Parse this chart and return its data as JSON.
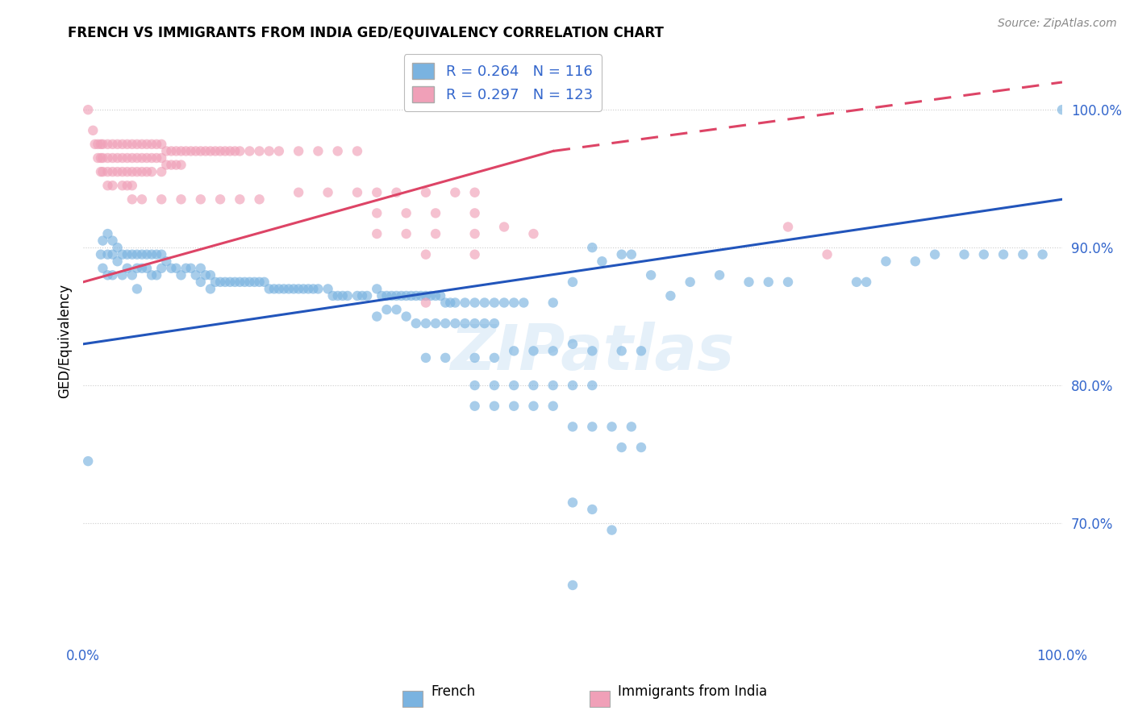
{
  "title": "FRENCH VS IMMIGRANTS FROM INDIA GED/EQUIVALENCY CORRELATION CHART",
  "source": "Source: ZipAtlas.com",
  "ylabel": "GED/Equivalency",
  "yticks": [
    "70.0%",
    "80.0%",
    "90.0%",
    "100.0%"
  ],
  "ytick_vals": [
    0.7,
    0.8,
    0.9,
    1.0
  ],
  "xlim": [
    0.0,
    1.0
  ],
  "ylim": [
    0.615,
    1.05
  ],
  "legend_french_R": "0.264",
  "legend_french_N": "116",
  "legend_india_R": "0.297",
  "legend_india_N": "123",
  "french_color": "#7ab3e0",
  "india_color": "#f0a0b8",
  "french_line_color": "#2255bb",
  "india_line_color": "#dd4466",
  "watermark": "ZIPatlas",
  "french_line": [
    0.0,
    0.83,
    1.0,
    0.935
  ],
  "india_line_solid": [
    0.0,
    0.875,
    0.48,
    0.97
  ],
  "india_line_dashed": [
    0.48,
    0.97,
    1.0,
    1.02
  ],
  "french_scatter": [
    [
      0.005,
      0.745
    ],
    [
      0.018,
      0.895
    ],
    [
      0.02,
      0.905
    ],
    [
      0.02,
      0.885
    ],
    [
      0.025,
      0.91
    ],
    [
      0.025,
      0.895
    ],
    [
      0.025,
      0.88
    ],
    [
      0.03,
      0.905
    ],
    [
      0.03,
      0.895
    ],
    [
      0.03,
      0.88
    ],
    [
      0.035,
      0.9
    ],
    [
      0.035,
      0.89
    ],
    [
      0.04,
      0.895
    ],
    [
      0.04,
      0.88
    ],
    [
      0.045,
      0.895
    ],
    [
      0.045,
      0.885
    ],
    [
      0.05,
      0.895
    ],
    [
      0.05,
      0.88
    ],
    [
      0.055,
      0.895
    ],
    [
      0.055,
      0.885
    ],
    [
      0.055,
      0.87
    ],
    [
      0.06,
      0.895
    ],
    [
      0.06,
      0.885
    ],
    [
      0.065,
      0.895
    ],
    [
      0.065,
      0.885
    ],
    [
      0.07,
      0.895
    ],
    [
      0.07,
      0.88
    ],
    [
      0.075,
      0.895
    ],
    [
      0.075,
      0.88
    ],
    [
      0.08,
      0.895
    ],
    [
      0.08,
      0.885
    ],
    [
      0.085,
      0.89
    ],
    [
      0.09,
      0.885
    ],
    [
      0.095,
      0.885
    ],
    [
      0.1,
      0.88
    ],
    [
      0.105,
      0.885
    ],
    [
      0.11,
      0.885
    ],
    [
      0.115,
      0.88
    ],
    [
      0.12,
      0.885
    ],
    [
      0.12,
      0.875
    ],
    [
      0.125,
      0.88
    ],
    [
      0.13,
      0.88
    ],
    [
      0.13,
      0.87
    ],
    [
      0.135,
      0.875
    ],
    [
      0.14,
      0.875
    ],
    [
      0.145,
      0.875
    ],
    [
      0.15,
      0.875
    ],
    [
      0.155,
      0.875
    ],
    [
      0.16,
      0.875
    ],
    [
      0.165,
      0.875
    ],
    [
      0.17,
      0.875
    ],
    [
      0.175,
      0.875
    ],
    [
      0.18,
      0.875
    ],
    [
      0.185,
      0.875
    ],
    [
      0.19,
      0.87
    ],
    [
      0.195,
      0.87
    ],
    [
      0.2,
      0.87
    ],
    [
      0.205,
      0.87
    ],
    [
      0.21,
      0.87
    ],
    [
      0.215,
      0.87
    ],
    [
      0.22,
      0.87
    ],
    [
      0.225,
      0.87
    ],
    [
      0.23,
      0.87
    ],
    [
      0.235,
      0.87
    ],
    [
      0.24,
      0.87
    ],
    [
      0.25,
      0.87
    ],
    [
      0.255,
      0.865
    ],
    [
      0.26,
      0.865
    ],
    [
      0.265,
      0.865
    ],
    [
      0.27,
      0.865
    ],
    [
      0.28,
      0.865
    ],
    [
      0.285,
      0.865
    ],
    [
      0.29,
      0.865
    ],
    [
      0.3,
      0.87
    ],
    [
      0.305,
      0.865
    ],
    [
      0.31,
      0.865
    ],
    [
      0.315,
      0.865
    ],
    [
      0.32,
      0.865
    ],
    [
      0.325,
      0.865
    ],
    [
      0.33,
      0.865
    ],
    [
      0.335,
      0.865
    ],
    [
      0.34,
      0.865
    ],
    [
      0.345,
      0.865
    ],
    [
      0.35,
      0.865
    ],
    [
      0.355,
      0.865
    ],
    [
      0.36,
      0.865
    ],
    [
      0.365,
      0.865
    ],
    [
      0.37,
      0.86
    ],
    [
      0.375,
      0.86
    ],
    [
      0.38,
      0.86
    ],
    [
      0.39,
      0.86
    ],
    [
      0.4,
      0.86
    ],
    [
      0.41,
      0.86
    ],
    [
      0.42,
      0.86
    ],
    [
      0.43,
      0.86
    ],
    [
      0.44,
      0.86
    ],
    [
      0.45,
      0.86
    ],
    [
      0.3,
      0.85
    ],
    [
      0.31,
      0.855
    ],
    [
      0.32,
      0.855
    ],
    [
      0.33,
      0.85
    ],
    [
      0.34,
      0.845
    ],
    [
      0.35,
      0.845
    ],
    [
      0.36,
      0.845
    ],
    [
      0.37,
      0.845
    ],
    [
      0.38,
      0.845
    ],
    [
      0.39,
      0.845
    ],
    [
      0.4,
      0.845
    ],
    [
      0.41,
      0.845
    ],
    [
      0.42,
      0.845
    ],
    [
      0.48,
      0.86
    ],
    [
      0.5,
      0.875
    ],
    [
      0.52,
      0.9
    ],
    [
      0.53,
      0.89
    ],
    [
      0.55,
      0.895
    ],
    [
      0.56,
      0.895
    ],
    [
      0.58,
      0.88
    ],
    [
      0.6,
      0.865
    ],
    [
      0.62,
      0.875
    ],
    [
      0.65,
      0.88
    ],
    [
      0.68,
      0.875
    ],
    [
      0.7,
      0.875
    ],
    [
      0.72,
      0.875
    ],
    [
      0.79,
      0.875
    ],
    [
      0.8,
      0.875
    ],
    [
      0.82,
      0.89
    ],
    [
      0.85,
      0.89
    ],
    [
      0.87,
      0.895
    ],
    [
      0.9,
      0.895
    ],
    [
      0.92,
      0.895
    ],
    [
      0.94,
      0.895
    ],
    [
      0.96,
      0.895
    ],
    [
      0.98,
      0.895
    ],
    [
      1.0,
      1.0
    ],
    [
      0.35,
      0.82
    ],
    [
      0.37,
      0.82
    ],
    [
      0.4,
      0.82
    ],
    [
      0.42,
      0.82
    ],
    [
      0.44,
      0.825
    ],
    [
      0.46,
      0.825
    ],
    [
      0.48,
      0.825
    ],
    [
      0.5,
      0.83
    ],
    [
      0.52,
      0.825
    ],
    [
      0.55,
      0.825
    ],
    [
      0.57,
      0.825
    ],
    [
      0.4,
      0.8
    ],
    [
      0.42,
      0.8
    ],
    [
      0.44,
      0.8
    ],
    [
      0.46,
      0.8
    ],
    [
      0.48,
      0.8
    ],
    [
      0.5,
      0.8
    ],
    [
      0.52,
      0.8
    ],
    [
      0.4,
      0.785
    ],
    [
      0.42,
      0.785
    ],
    [
      0.44,
      0.785
    ],
    [
      0.46,
      0.785
    ],
    [
      0.48,
      0.785
    ],
    [
      0.5,
      0.77
    ],
    [
      0.52,
      0.77
    ],
    [
      0.54,
      0.77
    ],
    [
      0.56,
      0.77
    ],
    [
      0.55,
      0.755
    ],
    [
      0.57,
      0.755
    ],
    [
      0.5,
      0.715
    ],
    [
      0.52,
      0.71
    ],
    [
      0.54,
      0.695
    ],
    [
      0.5,
      0.655
    ]
  ],
  "india_scatter": [
    [
      0.005,
      1.0
    ],
    [
      0.01,
      0.985
    ],
    [
      0.012,
      0.975
    ],
    [
      0.015,
      0.975
    ],
    [
      0.015,
      0.965
    ],
    [
      0.018,
      0.975
    ],
    [
      0.018,
      0.965
    ],
    [
      0.018,
      0.955
    ],
    [
      0.02,
      0.975
    ],
    [
      0.02,
      0.965
    ],
    [
      0.02,
      0.955
    ],
    [
      0.025,
      0.975
    ],
    [
      0.025,
      0.965
    ],
    [
      0.025,
      0.955
    ],
    [
      0.025,
      0.945
    ],
    [
      0.03,
      0.975
    ],
    [
      0.03,
      0.965
    ],
    [
      0.03,
      0.955
    ],
    [
      0.03,
      0.945
    ],
    [
      0.035,
      0.975
    ],
    [
      0.035,
      0.965
    ],
    [
      0.035,
      0.955
    ],
    [
      0.04,
      0.975
    ],
    [
      0.04,
      0.965
    ],
    [
      0.04,
      0.955
    ],
    [
      0.04,
      0.945
    ],
    [
      0.045,
      0.975
    ],
    [
      0.045,
      0.965
    ],
    [
      0.045,
      0.955
    ],
    [
      0.045,
      0.945
    ],
    [
      0.05,
      0.975
    ],
    [
      0.05,
      0.965
    ],
    [
      0.05,
      0.955
    ],
    [
      0.05,
      0.945
    ],
    [
      0.055,
      0.975
    ],
    [
      0.055,
      0.965
    ],
    [
      0.055,
      0.955
    ],
    [
      0.06,
      0.975
    ],
    [
      0.06,
      0.965
    ],
    [
      0.06,
      0.955
    ],
    [
      0.065,
      0.975
    ],
    [
      0.065,
      0.965
    ],
    [
      0.065,
      0.955
    ],
    [
      0.07,
      0.975
    ],
    [
      0.07,
      0.965
    ],
    [
      0.07,
      0.955
    ],
    [
      0.075,
      0.975
    ],
    [
      0.075,
      0.965
    ],
    [
      0.08,
      0.975
    ],
    [
      0.08,
      0.965
    ],
    [
      0.08,
      0.955
    ],
    [
      0.085,
      0.97
    ],
    [
      0.085,
      0.96
    ],
    [
      0.09,
      0.97
    ],
    [
      0.09,
      0.96
    ],
    [
      0.095,
      0.97
    ],
    [
      0.095,
      0.96
    ],
    [
      0.1,
      0.97
    ],
    [
      0.1,
      0.96
    ],
    [
      0.105,
      0.97
    ],
    [
      0.11,
      0.97
    ],
    [
      0.115,
      0.97
    ],
    [
      0.12,
      0.97
    ],
    [
      0.125,
      0.97
    ],
    [
      0.13,
      0.97
    ],
    [
      0.135,
      0.97
    ],
    [
      0.14,
      0.97
    ],
    [
      0.145,
      0.97
    ],
    [
      0.15,
      0.97
    ],
    [
      0.155,
      0.97
    ],
    [
      0.16,
      0.97
    ],
    [
      0.17,
      0.97
    ],
    [
      0.18,
      0.97
    ],
    [
      0.19,
      0.97
    ],
    [
      0.2,
      0.97
    ],
    [
      0.22,
      0.97
    ],
    [
      0.24,
      0.97
    ],
    [
      0.26,
      0.97
    ],
    [
      0.28,
      0.97
    ],
    [
      0.05,
      0.935
    ],
    [
      0.06,
      0.935
    ],
    [
      0.08,
      0.935
    ],
    [
      0.1,
      0.935
    ],
    [
      0.12,
      0.935
    ],
    [
      0.14,
      0.935
    ],
    [
      0.16,
      0.935
    ],
    [
      0.18,
      0.935
    ],
    [
      0.22,
      0.94
    ],
    [
      0.25,
      0.94
    ],
    [
      0.28,
      0.94
    ],
    [
      0.3,
      0.94
    ],
    [
      0.32,
      0.94
    ],
    [
      0.35,
      0.94
    ],
    [
      0.38,
      0.94
    ],
    [
      0.4,
      0.94
    ],
    [
      0.3,
      0.925
    ],
    [
      0.33,
      0.925
    ],
    [
      0.36,
      0.925
    ],
    [
      0.4,
      0.925
    ],
    [
      0.3,
      0.91
    ],
    [
      0.33,
      0.91
    ],
    [
      0.36,
      0.91
    ],
    [
      0.4,
      0.91
    ],
    [
      0.43,
      0.915
    ],
    [
      0.46,
      0.91
    ],
    [
      0.35,
      0.895
    ],
    [
      0.4,
      0.895
    ],
    [
      0.72,
      0.915
    ],
    [
      0.76,
      0.895
    ],
    [
      0.35,
      0.86
    ]
  ]
}
